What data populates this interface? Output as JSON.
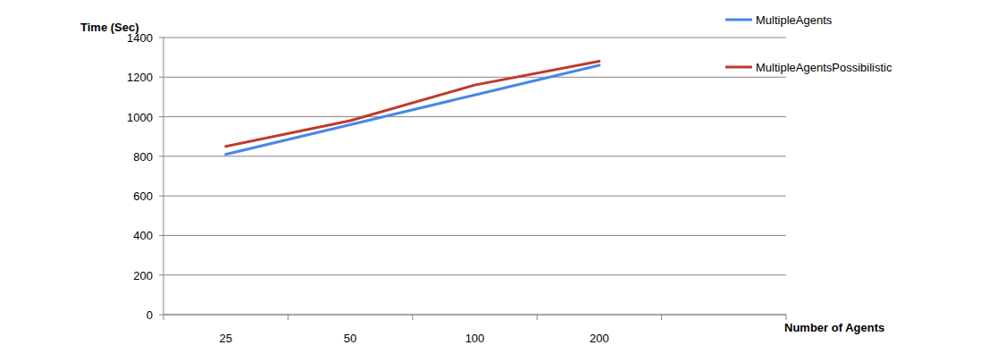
{
  "chart_data": {
    "type": "line",
    "y_label": "Time (Sec)",
    "x_label": "Number of Agents",
    "categories": [
      "25",
      "50",
      "100",
      "200",
      null
    ],
    "series": [
      {
        "name": "MultipleAgents",
        "color": "#4a86e8",
        "values": [
          810,
          960,
          1110,
          1260,
          null
        ]
      },
      {
        "name": "MultipleAgentsPossibilistic",
        "color": "#c0392b",
        "values": [
          850,
          980,
          1160,
          1280,
          null
        ]
      }
    ],
    "ylim": [
      0,
      1400
    ],
    "yticks": [
      0,
      200,
      400,
      600,
      800,
      1000,
      1200,
      1400
    ],
    "grid": true,
    "legend": "right"
  }
}
